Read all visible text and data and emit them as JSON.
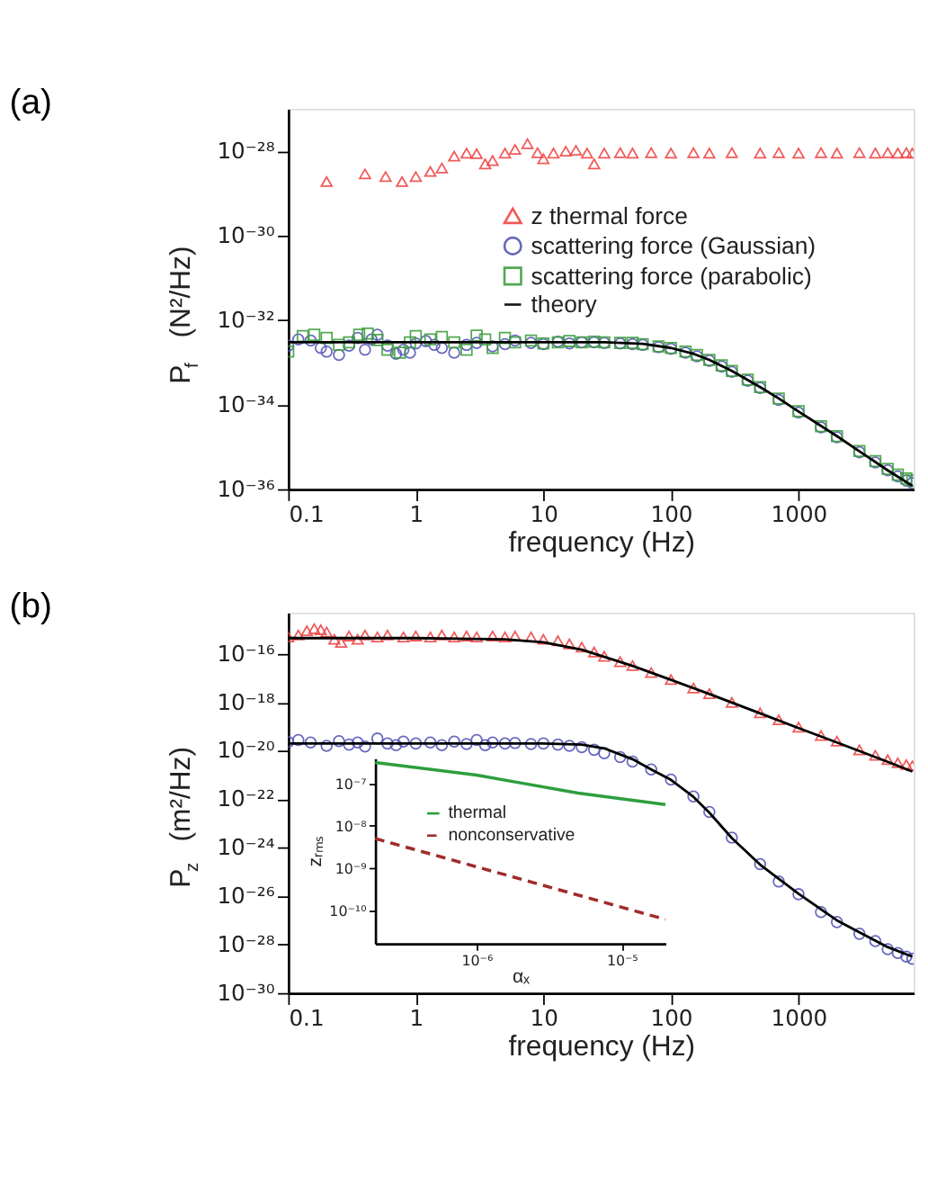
{
  "chart_data": [
    {
      "type": "scatter",
      "title": "(a)",
      "xlabel": "frequency (Hz)",
      "ylabel": "P$_{f}$  (N²/Hz)",
      "log": "xy",
      "legend": "top right",
      "xlim": [
        0.1,
        8000
      ],
      "xticks": [
        0.1,
        1,
        10,
        100,
        1000
      ],
      "ylim": [
        1e-36,
        1e-27
      ],
      "yticks": [
        {
          "value": 1e-36,
          "label": "10⁻³⁶"
        },
        {
          "value": 1e-34,
          "label": "10⁻³⁴"
        },
        {
          "value": 1e-32,
          "label": "10⁻³²"
        },
        {
          "value": 1e-30,
          "label": "10⁻³⁰"
        },
        {
          "value": 1e-28,
          "label": "10⁻²⁸"
        }
      ],
      "series": [
        {
          "name": "z thermal force",
          "marker": "triangle",
          "color": "#f04848",
          "x": [
            0.2,
            0.4,
            0.58,
            0.78,
            1.0,
            1.3,
            1.6,
            2,
            2.5,
            3,
            3.5,
            4,
            5,
            6,
            7.5,
            9,
            10,
            12,
            15,
            18,
            22,
            25,
            30,
            40,
            50,
            70,
            100,
            150,
            200,
            300,
            500,
            700,
            1000,
            1500,
            2000,
            3000,
            4000,
            5000,
            6000,
            7000,
            7800
          ],
          "values": [
            1.9e-29,
            2.9e-29,
            2.5e-29,
            1.9e-29,
            2.5e-29,
            3.3e-29,
            4e-29,
            7.6e-29,
            9e-29,
            8.7e-29,
            5e-29,
            6e-29,
            9e-29,
            1.1e-28,
            1.5e-28,
            9.2e-29,
            6.6e-29,
            9e-29,
            1e-28,
            1.05e-28,
            9e-29,
            5e-29,
            9e-29,
            9.2e-29,
            9e-29,
            9.2e-29,
            9e-29,
            9.2e-29,
            9e-29,
            9.2e-29,
            9e-29,
            9.2e-29,
            9e-29,
            9.2e-29,
            9e-29,
            9.2e-29,
            9e-29,
            9.2e-29,
            9e-29,
            9.2e-29,
            9e-29
          ]
        },
        {
          "name": "scattering force (Gaussian)",
          "marker": "circle",
          "color": "#5858b8",
          "x": [
            0.1,
            0.12,
            0.15,
            0.18,
            0.2,
            0.25,
            0.3,
            0.35,
            0.4,
            0.45,
            0.5,
            0.6,
            0.7,
            0.8,
            0.9,
            1,
            1.2,
            1.4,
            1.6,
            2,
            2.5,
            3,
            4,
            5,
            6,
            8,
            10,
            13,
            16,
            20,
            25,
            30,
            40,
            50,
            60,
            80,
            100,
            130,
            160,
            200,
            250,
            300,
            400,
            500,
            700,
            1000,
            1500,
            2000,
            3000,
            4000,
            5000,
            6000,
            7000,
            7800
          ],
          "values": [
            2.5e-33,
            3.5e-33,
            3.3e-33,
            2.2e-33,
            1.8e-33,
            1.5e-33,
            2.5e-33,
            3.8e-33,
            2e-33,
            3.5e-33,
            4.5e-33,
            2.5e-33,
            1.6e-33,
            2e-33,
            1.7e-33,
            2.8e-33,
            3.2e-33,
            2.6e-33,
            2.2e-33,
            1.7e-33,
            2.6e-33,
            2.9e-33,
            2.4e-33,
            2.7e-33,
            3.3e-33,
            2.9e-33,
            2.7e-33,
            3.1e-33,
            2.8e-33,
            3e-33,
            3e-33,
            2.9e-33,
            2.8e-33,
            2.7e-33,
            2.6e-33,
            2.3e-33,
            2.1e-33,
            1.7e-33,
            1.4e-33,
            1.1e-33,
            8e-34,
            6e-34,
            3.7e-34,
            2.5e-34,
            1.3e-34,
            6.5e-35,
            2.9e-35,
            1.7e-35,
            7.5e-36,
            4.3e-36,
            2.8e-36,
            2e-36,
            1.6e-36,
            1.4e-36
          ]
        },
        {
          "name": "scattering force (parabolic)",
          "marker": "square",
          "color": "#40a040",
          "x": [
            0.1,
            0.13,
            0.16,
            0.2,
            0.25,
            0.3,
            0.36,
            0.42,
            0.5,
            0.6,
            0.75,
            0.9,
            1,
            1.3,
            1.6,
            2,
            2.5,
            3,
            3.5,
            4,
            5,
            6,
            8,
            10,
            13,
            16,
            20,
            25,
            30,
            40,
            50,
            60,
            80,
            100,
            130,
            160,
            200,
            250,
            300,
            400,
            500,
            700,
            1000,
            1500,
            2000,
            3000,
            4000,
            5000,
            6000,
            7000,
            7800
          ],
          "values": [
            1.8e-33,
            4.2e-33,
            4.5e-33,
            3.8e-33,
            2.6e-33,
            3e-33,
            4.5e-33,
            4.8e-33,
            3.4e-33,
            2e-33,
            1.7e-33,
            3e-33,
            4.2e-33,
            3.5e-33,
            4e-33,
            3e-33,
            2e-33,
            4.3e-33,
            3.5e-33,
            2.2e-33,
            3.8e-33,
            3e-33,
            3.3e-33,
            2.8e-33,
            3e-33,
            3.2e-33,
            3e-33,
            3.1e-33,
            3e-33,
            2.9e-33,
            2.9e-33,
            2.7e-33,
            2.4e-33,
            2.2e-33,
            1.8e-33,
            1.5e-33,
            1.15e-33,
            8.5e-34,
            6.3e-34,
            3.9e-34,
            2.6e-34,
            1.4e-34,
            7e-35,
            3.1e-35,
            1.8e-35,
            8e-36,
            4.6e-36,
            3e-36,
            2.2e-36,
            1.8e-36,
            1.6e-36
          ]
        },
        {
          "name": "theory",
          "type": "line",
          "marker": "none",
          "line_style": "solid",
          "color": "#000000",
          "x": [
            0.1,
            1,
            10,
            30,
            60,
            100,
            150,
            200,
            300,
            500,
            700,
            1000,
            2000,
            3000,
            5000,
            7800
          ],
          "values": [
            3e-33,
            3e-33,
            3e-33,
            3e-33,
            2.75e-33,
            2.2e-33,
            1.6e-33,
            1.15e-33,
            6.3e-34,
            2.6e-34,
            1.4e-34,
            6.9e-35,
            1.8e-35,
            7.9e-36,
            2.8e-36,
            1.2e-36
          ]
        }
      ]
    },
    {
      "type": "scatter",
      "title": "(b)",
      "xlabel": "frequency (Hz)",
      "ylabel": "P$_{z}$  (m²/Hz)",
      "log": "xy",
      "xlim": [
        0.1,
        8000
      ],
      "xticks": [
        0.1,
        1,
        10,
        100,
        1000
      ],
      "ylim": [
        1e-30,
        5e-15
      ],
      "yticks": [
        {
          "value": 1e-30,
          "label": "10⁻³⁰"
        },
        {
          "value": 1e-28,
          "label": "10⁻²⁸"
        },
        {
          "value": 1e-26,
          "label": "10⁻²⁶"
        },
        {
          "value": 1e-24,
          "label": "10⁻²⁴"
        },
        {
          "value": 1e-22,
          "label": "10⁻²²"
        },
        {
          "value": 1e-20,
          "label": "10⁻²⁰"
        },
        {
          "value": 1e-18,
          "label": "10⁻¹⁸"
        },
        {
          "value": 1e-16,
          "label": "10⁻¹⁶"
        }
      ],
      "series": [
        {
          "marker": "triangle",
          "color": "#f04848",
          "x": [
            0.1,
            0.12,
            0.14,
            0.16,
            0.18,
            0.2,
            0.23,
            0.26,
            0.3,
            0.35,
            0.4,
            0.5,
            0.6,
            0.8,
            1,
            1.3,
            1.6,
            2,
            2.5,
            3,
            4,
            5,
            6,
            8,
            10,
            13,
            16,
            20,
            25,
            30,
            40,
            50,
            70,
            100,
            150,
            200,
            300,
            500,
            700,
            1000,
            1500,
            2000,
            3000,
            4000,
            5000,
            6000,
            7000,
            7800
          ],
          "values": [
            5e-16,
            6e-16,
            9e-16,
            1.1e-15,
            1e-15,
            8e-16,
            4e-16,
            3e-16,
            5.5e-16,
            4e-16,
            6e-16,
            5e-16,
            6e-16,
            5e-16,
            5.5e-16,
            5e-16,
            6e-16,
            5e-16,
            5.5e-16,
            5e-16,
            5.5e-16,
            5e-16,
            5.5e-16,
            5e-16,
            4e-16,
            3.5e-16,
            2.6e-16,
            1.9e-16,
            1.2e-16,
            8e-17,
            4.8e-17,
            3.3e-17,
            1.7e-17,
            8.7e-18,
            3.9e-18,
            2.3e-18,
            1e-18,
            3.7e-19,
            1.9e-19,
            9.5e-20,
            4.3e-20,
            2.5e-20,
            1.1e-20,
            6.5e-21,
            4.3e-21,
            3.2e-21,
            2.7e-21,
            2.4e-21
          ]
        },
        {
          "marker": "circle",
          "color": "#5858b8",
          "x": [
            0.1,
            0.12,
            0.15,
            0.2,
            0.25,
            0.3,
            0.35,
            0.4,
            0.5,
            0.6,
            0.7,
            0.8,
            1,
            1.3,
            1.6,
            2,
            2.5,
            3,
            3.5,
            4,
            5,
            6,
            8,
            10,
            13,
            16,
            20,
            25,
            30,
            40,
            50,
            70,
            100,
            150,
            200,
            300,
            500,
            700,
            1000,
            1500,
            2000,
            3000,
            4000,
            5000,
            6000,
            7000,
            7800
          ],
          "values": [
            2.3e-20,
            2.8e-20,
            2.2e-20,
            1.6e-20,
            2.5e-20,
            1.8e-20,
            2.2e-20,
            1.5e-20,
            3.2e-20,
            2e-20,
            1.7e-20,
            2.4e-20,
            2e-20,
            2.2e-20,
            1.7e-20,
            2.4e-20,
            1.9e-20,
            2.8e-20,
            1.7e-20,
            2.2e-20,
            2e-20,
            2.1e-20,
            1.9e-20,
            2e-20,
            1.8e-20,
            1.6e-20,
            1.4e-20,
            1.1e-20,
            8e-21,
            5.5e-21,
            3.6e-21,
            1.7e-21,
            6.5e-22,
            1.3e-22,
            3e-23,
            2.6e-24,
            2.1e-25,
            4e-26,
            1.2e-26,
            2.2e-27,
            8.5e-28,
            2.8e-28,
            1.4e-28,
            6.5e-29,
            4.5e-29,
            3.2e-29,
            2.6e-29
          ]
        },
        {
          "type": "line",
          "marker": "none",
          "line_style": "solid",
          "color": "#000000",
          "x": [
            0.1,
            1,
            5,
            10,
            20,
            50,
            100,
            200,
            500,
            1000,
            2000,
            5000,
            7800
          ],
          "values": [
            4.5e-16,
            4.5e-16,
            4e-16,
            3e-16,
            1.5e-16,
            3.2e-17,
            8.5e-18,
            2.2e-18,
            3.5e-19,
            8.7e-20,
            2.2e-20,
            3.5e-21,
            1.4e-21
          ]
        },
        {
          "type": "line",
          "marker": "none",
          "line_style": "solid",
          "color": "#000000",
          "x": [
            0.1,
            1,
            10,
            20,
            30,
            50,
            70,
            100,
            150,
            200,
            300,
            500,
            1000,
            2000,
            3000,
            5000,
            7800
          ],
          "values": [
            2e-20,
            2e-20,
            2e-20,
            1.8e-20,
            1.26e-20,
            4.5e-21,
            1.7e-21,
            6.3e-22,
            1.26e-22,
            2.8e-23,
            2.5e-24,
            2e-25,
            1.26e-26,
            1e-27,
            3.2e-28,
            7.9e-29,
            3.2e-29
          ]
        }
      ]
    },
    {
      "type": "line",
      "xlabel": "αₓ",
      "ylabel": "zᵣₘₛ",
      "log": "xy",
      "legend": "top left",
      "xlim": [
        2e-07,
        2e-05
      ],
      "xticks": [
        {
          "value": 1e-06,
          "label": "10⁻⁶"
        },
        {
          "value": 1e-05,
          "label": "10⁻⁵"
        }
      ],
      "ylim": [
        1.6e-11,
        4e-07
      ],
      "yticks": [
        {
          "value": 1e-10,
          "label": "10⁻¹⁰"
        },
        {
          "value": 1e-09,
          "label": "10⁻⁹"
        },
        {
          "value": 1e-08,
          "label": "10⁻⁸"
        },
        {
          "value": 1e-07,
          "label": "10⁻⁷"
        }
      ],
      "series": [
        {
          "name": "thermal",
          "line_style": "solid",
          "color": "#2e9e3e",
          "x": [
            2e-07,
            1e-06,
            2e-06,
            5e-06,
            2e-05
          ],
          "values": [
            3.2e-07,
            1.6e-07,
            1.05e-07,
            6e-08,
            3.2e-08
          ]
        },
        {
          "name": "nonconservative",
          "line_style": "dashed",
          "color": "#a02c2c",
          "x": [
            2e-07,
            2e-05
          ],
          "values": [
            5e-09,
            6e-11
          ]
        }
      ]
    }
  ]
}
